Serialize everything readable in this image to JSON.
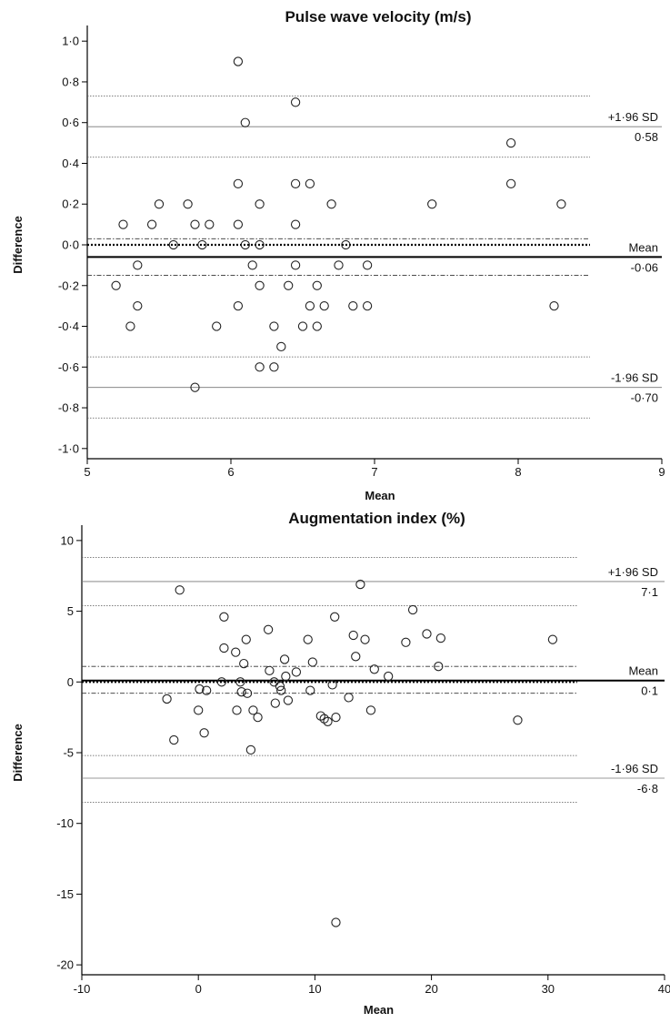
{
  "chart_data": [
    {
      "type": "scatter",
      "title": "Pulse wave velocity (m/s)",
      "xlabel": "Mean",
      "ylabel": "Difference",
      "xlim": [
        5,
        9
      ],
      "ylim": [
        -1.05,
        1.05
      ],
      "x_ticks": [
        5,
        6,
        7,
        8,
        9
      ],
      "x_tick_labels": [
        "5",
        "6",
        "7",
        "8",
        "9"
      ],
      "y_ticks": [
        1.0,
        0.8,
        0.6,
        0.4,
        0.2,
        0.0,
        -0.2,
        -0.4,
        -0.6,
        -0.8,
        -1.0
      ],
      "y_tick_labels": [
        "1·0",
        "0·8",
        "0·6",
        "0·4",
        "0·2",
        "0·0",
        "-0·2",
        "-0·4",
        "-0·6",
        "-0·8",
        "-1·0"
      ],
      "line_x_end": 8.5,
      "mean_line": {
        "value": -0.06,
        "label": "Mean",
        "value_label": "-0·06"
      },
      "mean_ci": [
        -0.15,
        0.03
      ],
      "zero_line": 0,
      "upper_loa": {
        "value": 0.58,
        "label": "+1·96 SD",
        "value_label": "0·58"
      },
      "upper_loa_ci": [
        0.43,
        0.73
      ],
      "lower_loa": {
        "value": -0.7,
        "label": "-1·96 SD",
        "value_label": "-0·70"
      },
      "lower_loa_ci": [
        -0.85,
        -0.55
      ],
      "grid": false,
      "points": [
        [
          5.2,
          -0.2
        ],
        [
          5.25,
          0.1
        ],
        [
          5.3,
          -0.4
        ],
        [
          5.35,
          -0.1
        ],
        [
          5.35,
          -0.3
        ],
        [
          5.45,
          0.1
        ],
        [
          5.5,
          0.2
        ],
        [
          5.6,
          0.0
        ],
        [
          5.7,
          0.2
        ],
        [
          5.75,
          0.1
        ],
        [
          5.75,
          -0.7
        ],
        [
          5.8,
          0.0
        ],
        [
          5.85,
          0.1
        ],
        [
          5.9,
          -0.4
        ],
        [
          6.05,
          0.9
        ],
        [
          6.05,
          0.3
        ],
        [
          6.05,
          0.1
        ],
        [
          6.05,
          -0.3
        ],
        [
          6.1,
          0.6
        ],
        [
          6.1,
          0.0
        ],
        [
          6.15,
          -0.1
        ],
        [
          6.2,
          0.2
        ],
        [
          6.2,
          0.0
        ],
        [
          6.2,
          -0.2
        ],
        [
          6.2,
          -0.6
        ],
        [
          6.3,
          -0.4
        ],
        [
          6.3,
          -0.6
        ],
        [
          6.35,
          -0.5
        ],
        [
          6.4,
          -0.2
        ],
        [
          6.45,
          0.7
        ],
        [
          6.45,
          0.3
        ],
        [
          6.45,
          0.1
        ],
        [
          6.45,
          -0.1
        ],
        [
          6.5,
          -0.4
        ],
        [
          6.55,
          0.3
        ],
        [
          6.55,
          -0.3
        ],
        [
          6.6,
          -0.2
        ],
        [
          6.6,
          -0.4
        ],
        [
          6.65,
          -0.3
        ],
        [
          6.7,
          0.2
        ],
        [
          6.75,
          -0.1
        ],
        [
          6.8,
          0.0
        ],
        [
          6.85,
          -0.3
        ],
        [
          6.95,
          -0.1
        ],
        [
          6.95,
          -0.3
        ],
        [
          7.4,
          0.2
        ],
        [
          7.95,
          0.5
        ],
        [
          7.95,
          0.3
        ],
        [
          8.25,
          -0.3
        ],
        [
          8.3,
          0.2
        ]
      ]
    },
    {
      "type": "scatter",
      "title": "Augmentation index (%)",
      "xlabel": "Mean",
      "ylabel": "Difference",
      "xlim": [
        -10,
        40
      ],
      "ylim": [
        -20.7,
        10.7
      ],
      "x_ticks": [
        -10,
        0,
        10,
        20,
        30,
        40
      ],
      "x_tick_labels": [
        "-10",
        "0",
        "10",
        "20",
        "30",
        "40"
      ],
      "y_ticks": [
        10,
        5,
        0,
        -5,
        -10,
        -15,
        -20
      ],
      "y_tick_labels": [
        "10",
        "5",
        "0",
        "-5",
        "-10",
        "-15",
        "-20"
      ],
      "line_x_end": 32.5,
      "mean_line": {
        "value": 0.1,
        "label": "Mean",
        "value_label": "0·1"
      },
      "mean_ci": [
        -0.8,
        1.1
      ],
      "zero_line": 0,
      "upper_loa": {
        "value": 7.1,
        "label": "+1·96 SD",
        "value_label": "7·1"
      },
      "upper_loa_ci": [
        5.4,
        8.8
      ],
      "lower_loa": {
        "value": -6.8,
        "label": "-1·96 SD",
        "value_label": "-6·8"
      },
      "lower_loa_ci": [
        -8.5,
        -5.2
      ],
      "grid": false,
      "points": [
        [
          -2.7,
          -1.2
        ],
        [
          -2.1,
          -4.1
        ],
        [
          -1.6,
          6.5
        ],
        [
          0.0,
          -2.0
        ],
        [
          0.1,
          -0.5
        ],
        [
          0.5,
          -3.6
        ],
        [
          0.7,
          -0.6
        ],
        [
          2.0,
          0.0
        ],
        [
          2.2,
          4.6
        ],
        [
          2.2,
          2.4
        ],
        [
          3.2,
          2.1
        ],
        [
          3.3,
          -2.0
        ],
        [
          3.6,
          0.0
        ],
        [
          3.7,
          -0.7
        ],
        [
          3.9,
          1.3
        ],
        [
          4.1,
          3.0
        ],
        [
          4.2,
          -0.8
        ],
        [
          4.5,
          -4.8
        ],
        [
          4.7,
          -2.0
        ],
        [
          5.1,
          -2.5
        ],
        [
          6.0,
          3.7
        ],
        [
          6.1,
          0.8
        ],
        [
          6.5,
          0.0
        ],
        [
          6.6,
          -1.5
        ],
        [
          7.0,
          -0.3
        ],
        [
          7.1,
          -0.6
        ],
        [
          7.4,
          1.6
        ],
        [
          7.5,
          0.4
        ],
        [
          7.7,
          -1.3
        ],
        [
          8.4,
          0.7
        ],
        [
          9.4,
          3.0
        ],
        [
          9.6,
          -0.6
        ],
        [
          9.8,
          1.4
        ],
        [
          10.5,
          -2.4
        ],
        [
          10.8,
          -2.6
        ],
        [
          11.1,
          -2.8
        ],
        [
          11.5,
          -0.2
        ],
        [
          11.7,
          4.6
        ],
        [
          11.8,
          -2.5
        ],
        [
          11.8,
          -17.0
        ],
        [
          12.9,
          -1.1
        ],
        [
          13.3,
          3.3
        ],
        [
          13.5,
          1.8
        ],
        [
          13.9,
          6.9
        ],
        [
          14.3,
          3.0
        ],
        [
          14.8,
          -2.0
        ],
        [
          15.1,
          0.9
        ],
        [
          16.3,
          0.4
        ],
        [
          17.8,
          2.8
        ],
        [
          18.4,
          5.1
        ],
        [
          19.6,
          3.4
        ],
        [
          20.6,
          1.1
        ],
        [
          20.8,
          3.1
        ],
        [
          27.4,
          -2.7
        ],
        [
          30.4,
          3.0
        ]
      ]
    }
  ]
}
